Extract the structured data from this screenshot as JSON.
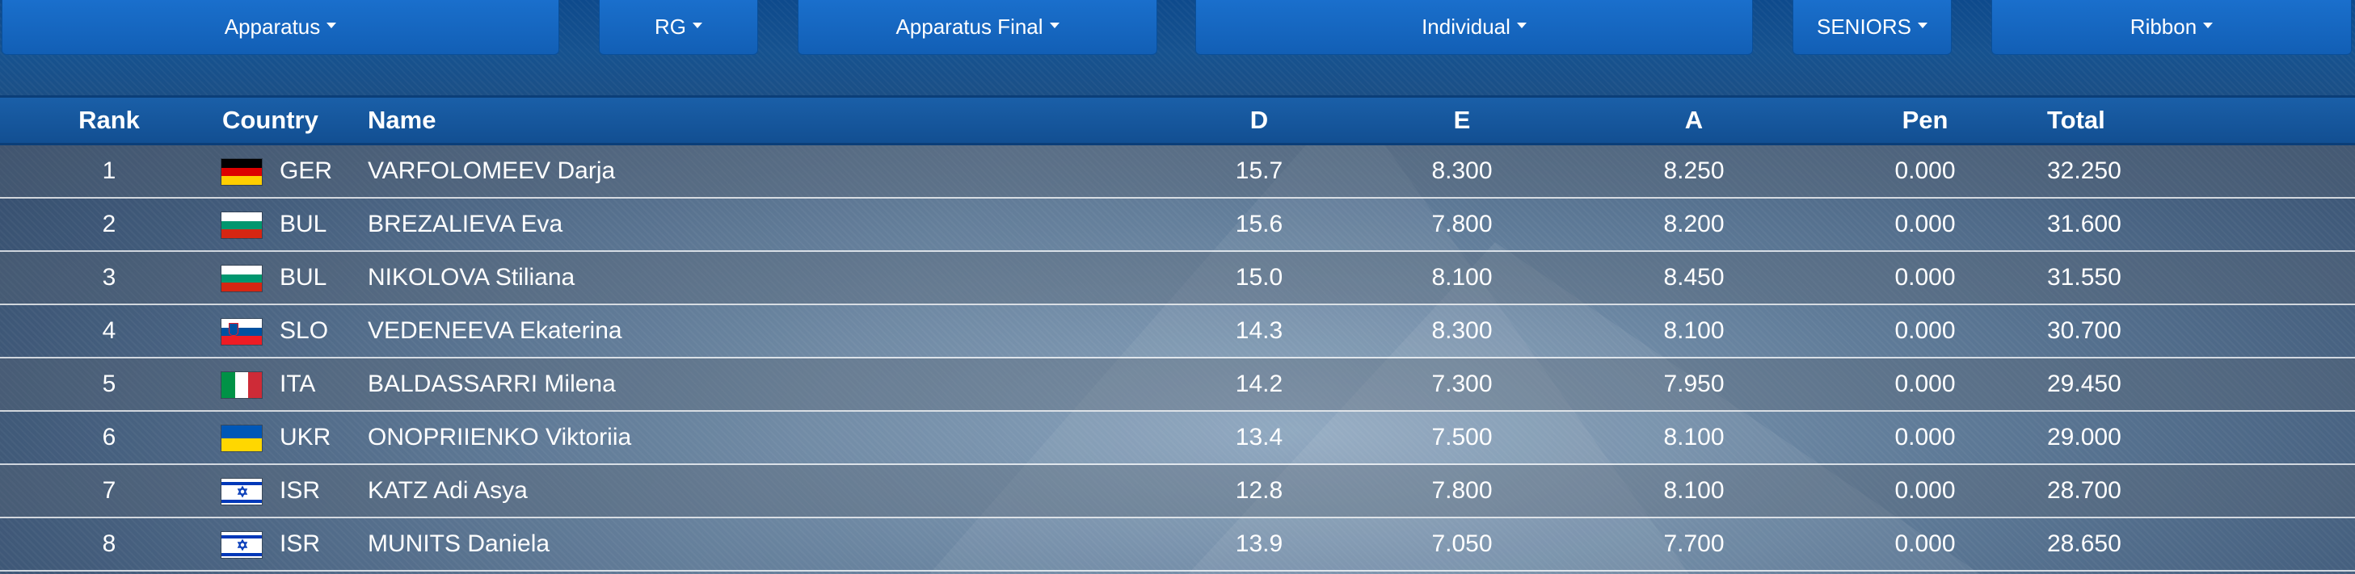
{
  "filters": [
    {
      "label": "Apparatus"
    },
    {
      "label": "RG"
    },
    {
      "label": "Apparatus Final"
    },
    {
      "label": "Individual"
    },
    {
      "label": "SENIORS"
    },
    {
      "label": "Ribbon"
    }
  ],
  "table": {
    "headers": {
      "rank": "Rank",
      "country": "Country",
      "name": "Name",
      "d": "D",
      "e": "E",
      "a": "A",
      "pen": "Pen",
      "total": "Total"
    },
    "rows": [
      {
        "rank": "1",
        "flag": "germany-flag-icon",
        "country": "GER",
        "name": "VARFOLOMEEV Darja",
        "d": "15.7",
        "e": "8.300",
        "a": "8.250",
        "pen": "0.000",
        "total": "32.250"
      },
      {
        "rank": "2",
        "flag": "bulgaria-flag-icon",
        "country": "BUL",
        "name": "BREZALIEVA Eva",
        "d": "15.6",
        "e": "7.800",
        "a": "8.200",
        "pen": "0.000",
        "total": "31.600"
      },
      {
        "rank": "3",
        "flag": "bulgaria-flag-icon",
        "country": "BUL",
        "name": "NIKOLOVA Stiliana",
        "d": "15.0",
        "e": "8.100",
        "a": "8.450",
        "pen": "0.000",
        "total": "31.550"
      },
      {
        "rank": "4",
        "flag": "slovenia-flag-icon",
        "country": "SLO",
        "name": "VEDENEEVA Ekaterina",
        "d": "14.3",
        "e": "8.300",
        "a": "8.100",
        "pen": "0.000",
        "total": "30.700"
      },
      {
        "rank": "5",
        "flag": "italy-flag-icon",
        "country": "ITA",
        "name": "BALDASSARRI Milena",
        "d": "14.2",
        "e": "7.300",
        "a": "7.950",
        "pen": "0.000",
        "total": "29.450"
      },
      {
        "rank": "6",
        "flag": "ukraine-flag-icon",
        "country": "UKR",
        "name": "ONOPRIIENKO Viktoriia",
        "d": "13.4",
        "e": "7.500",
        "a": "8.100",
        "pen": "0.000",
        "total": "29.000"
      },
      {
        "rank": "7",
        "flag": "israel-flag-icon",
        "country": "ISR",
        "name": "KATZ Adi Asya",
        "d": "12.8",
        "e": "7.800",
        "a": "8.100",
        "pen": "0.000",
        "total": "28.700"
      },
      {
        "rank": "8",
        "flag": "israel-flag-icon",
        "country": "ISR",
        "name": "MUNITS Daniela",
        "d": "13.9",
        "e": "7.050",
        "a": "7.700",
        "pen": "0.000",
        "total": "28.650"
      }
    ]
  }
}
